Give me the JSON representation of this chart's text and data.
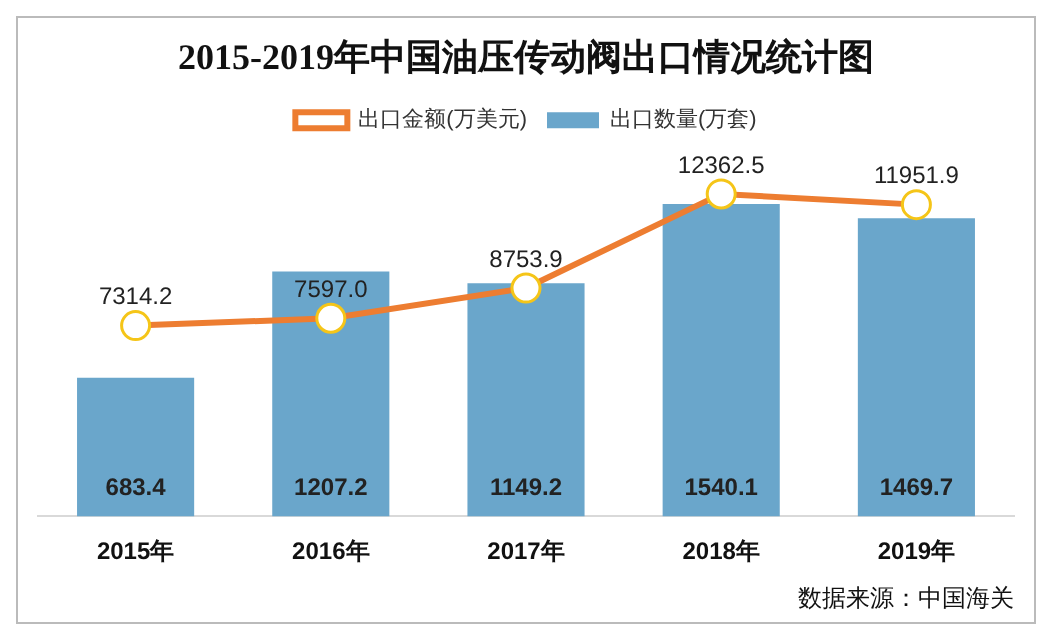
{
  "chart_data": {
    "type": "bar",
    "title": "2015-2019年中国油压传动阀出口情况统计图",
    "categories": [
      "2015年",
      "2016年",
      "2017年",
      "2018年",
      "2019年"
    ],
    "series": [
      {
        "name": "出口数量(万套)",
        "color": "#6aa6cb",
        "values": [
          683.4,
          1207.2,
          1149.2,
          1540.1,
          1469.7
        ]
      },
      {
        "name": "出口金额(万美元)",
        "type": "line",
        "axis": "y2",
        "color": "#ed7d31",
        "marker": "circle",
        "values": [
          7314.2,
          7597.0,
          8753.9,
          12362.5,
          11951.9
        ],
        "value_labels": [
          "7314.2",
          "7597.0",
          "8753.9",
          "12362.5",
          "11951.9"
        ]
      }
    ],
    "data_labels": true,
    "legend": "top",
    "grid": false,
    "annotations": [
      "数据来源：中国海关"
    ]
  }
}
